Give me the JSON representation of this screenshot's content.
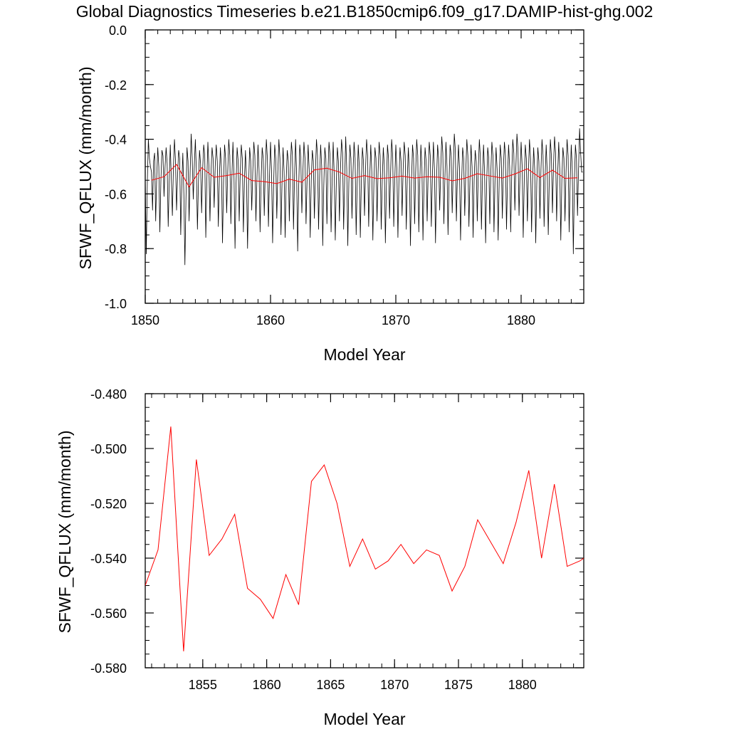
{
  "title": "Global Diagnostics Timeseries b.e21.B1850cmip6.f09_g17.DAMIP-hist-ghg.002",
  "colors": {
    "monthly": "#000000",
    "annual": "#ff0000",
    "axes": "#000000",
    "background": "#ffffff"
  },
  "chart_data": [
    {
      "type": "line",
      "title": "",
      "xlabel": "Model Year",
      "ylabel": "SFWF_QFLUX (mm/month)",
      "xlim": [
        1850,
        1885
      ],
      "ylim": [
        -1.0,
        0.0
      ],
      "xticks": [
        "1850",
        "1860",
        "1870",
        "1880"
      ],
      "yticks": [
        "0.0",
        "-0.2",
        "-0.4",
        "-0.6",
        "-0.8",
        "-1.0"
      ],
      "grid": false,
      "series": [
        {
          "name": "",
          "color": "#000000",
          "x_start": 1850.0,
          "x_step": 0.0833333,
          "values": [
            -0.54,
            -0.82,
            -0.56,
            -0.4,
            -0.47,
            -0.5,
            -0.52,
            -0.66,
            -0.48,
            -0.45,
            -0.7,
            -0.54,
            -0.43,
            -0.5,
            -0.74,
            -0.55,
            -0.44,
            -0.46,
            -0.61,
            -0.5,
            -0.43,
            -0.49,
            -0.72,
            -0.55,
            -0.42,
            -0.55,
            -0.68,
            -0.5,
            -0.4,
            -0.48,
            -0.66,
            -0.53,
            -0.44,
            -0.47,
            -0.75,
            -0.57,
            -0.45,
            -0.6,
            -0.86,
            -0.62,
            -0.43,
            -0.48,
            -0.7,
            -0.52,
            -0.38,
            -0.47,
            -0.62,
            -0.5,
            -0.4,
            -0.52,
            -0.73,
            -0.55,
            -0.44,
            -0.49,
            -0.67,
            -0.51,
            -0.42,
            -0.46,
            -0.76,
            -0.55,
            -0.41,
            -0.5,
            -0.7,
            -0.52,
            -0.43,
            -0.47,
            -0.65,
            -0.5,
            -0.42,
            -0.48,
            -0.72,
            -0.54,
            -0.43,
            -0.51,
            -0.78,
            -0.56,
            -0.42,
            -0.47,
            -0.67,
            -0.52,
            -0.4,
            -0.46,
            -0.71,
            -0.54,
            -0.41,
            -0.53,
            -0.8,
            -0.56,
            -0.43,
            -0.48,
            -0.7,
            -0.52,
            -0.42,
            -0.47,
            -0.74,
            -0.55,
            -0.44,
            -0.55,
            -0.8,
            -0.57,
            -0.43,
            -0.48,
            -0.66,
            -0.52,
            -0.41,
            -0.46,
            -0.7,
            -0.54,
            -0.42,
            -0.51,
            -0.74,
            -0.55,
            -0.43,
            -0.47,
            -0.68,
            -0.51,
            -0.4,
            -0.47,
            -0.72,
            -0.54,
            -0.41,
            -0.52,
            -0.78,
            -0.56,
            -0.42,
            -0.47,
            -0.69,
            -0.52,
            -0.4,
            -0.47,
            -0.75,
            -0.56,
            -0.43,
            -0.52,
            -0.76,
            -0.55,
            -0.44,
            -0.48,
            -0.7,
            -0.51,
            -0.41,
            -0.46,
            -0.73,
            -0.54,
            -0.4,
            -0.53,
            -0.81,
            -0.57,
            -0.42,
            -0.47,
            -0.67,
            -0.52,
            -0.41,
            -0.47,
            -0.71,
            -0.55,
            -0.42,
            -0.51,
            -0.76,
            -0.55,
            -0.44,
            -0.48,
            -0.69,
            -0.52,
            -0.4,
            -0.46,
            -0.73,
            -0.54,
            -0.42,
            -0.5,
            -0.79,
            -0.57,
            -0.43,
            -0.47,
            -0.71,
            -0.52,
            -0.41,
            -0.46,
            -0.74,
            -0.55,
            -0.41,
            -0.53,
            -0.77,
            -0.56,
            -0.43,
            -0.48,
            -0.7,
            -0.51,
            -0.4,
            -0.45,
            -0.73,
            -0.55,
            -0.39,
            -0.51,
            -0.79,
            -0.56,
            -0.42,
            -0.47,
            -0.69,
            -0.52,
            -0.41,
            -0.47,
            -0.75,
            -0.56,
            -0.42,
            -0.5,
            -0.76,
            -0.55,
            -0.43,
            -0.48,
            -0.68,
            -0.51,
            -0.4,
            -0.46,
            -0.72,
            -0.54,
            -0.42,
            -0.52,
            -0.77,
            -0.56,
            -0.43,
            -0.47,
            -0.7,
            -0.52,
            -0.41,
            -0.46,
            -0.73,
            -0.55,
            -0.43,
            -0.5,
            -0.78,
            -0.57,
            -0.42,
            -0.47,
            -0.69,
            -0.52,
            -0.4,
            -0.46,
            -0.72,
            -0.55,
            -0.42,
            -0.51,
            -0.76,
            -0.55,
            -0.43,
            -0.48,
            -0.68,
            -0.51,
            -0.41,
            -0.46,
            -0.73,
            -0.54,
            -0.43,
            -0.53,
            -0.79,
            -0.56,
            -0.42,
            -0.47,
            -0.71,
            -0.52,
            -0.4,
            -0.46,
            -0.74,
            -0.55,
            -0.42,
            -0.5,
            -0.77,
            -0.56,
            -0.43,
            -0.48,
            -0.7,
            -0.52,
            -0.41,
            -0.46,
            -0.72,
            -0.54,
            -0.41,
            -0.51,
            -0.78,
            -0.55,
            -0.42,
            -0.47,
            -0.66,
            -0.51,
            -0.39,
            -0.45,
            -0.71,
            -0.54,
            -0.41,
            -0.5,
            -0.75,
            -0.55,
            -0.42,
            -0.46,
            -0.67,
            -0.51,
            -0.38,
            -0.44,
            -0.7,
            -0.53,
            -0.42,
            -0.51,
            -0.77,
            -0.56,
            -0.43,
            -0.47,
            -0.68,
            -0.52,
            -0.4,
            -0.46,
            -0.72,
            -0.55,
            -0.42,
            -0.5,
            -0.76,
            -0.55,
            -0.44,
            -0.48,
            -0.7,
            -0.51,
            -0.4,
            -0.47,
            -0.73,
            -0.54,
            -0.42,
            -0.52,
            -0.78,
            -0.56,
            -0.43,
            -0.47,
            -0.71,
            -0.52,
            -0.41,
            -0.46,
            -0.74,
            -0.55,
            -0.43,
            -0.51,
            -0.77,
            -0.55,
            -0.42,
            -0.47,
            -0.69,
            -0.51,
            -0.41,
            -0.46,
            -0.73,
            -0.54,
            -0.42,
            -0.5,
            -0.74,
            -0.53,
            -0.4,
            -0.45,
            -0.66,
            -0.5,
            -0.38,
            -0.44,
            -0.68,
            -0.52,
            -0.41,
            -0.5,
            -0.76,
            -0.55,
            -0.42,
            -0.47,
            -0.7,
            -0.52,
            -0.4,
            -0.47,
            -0.74,
            -0.55,
            -0.43,
            -0.51,
            -0.78,
            -0.56,
            -0.43,
            -0.48,
            -0.69,
            -0.51,
            -0.4,
            -0.46,
            -0.72,
            -0.54,
            -0.42,
            -0.52,
            -0.75,
            -0.54,
            -0.4,
            -0.46,
            -0.67,
            -0.5,
            -0.39,
            -0.45,
            -0.7,
            -0.53,
            -0.41,
            -0.51,
            -0.77,
            -0.55,
            -0.43,
            -0.47,
            -0.7,
            -0.52,
            -0.4,
            -0.46,
            -0.74,
            -0.55,
            -0.42,
            -0.51,
            -0.82,
            -0.56,
            -0.42,
            -0.47,
            -0.68,
            -0.51,
            -0.36,
            -0.45,
            -0.52,
            -0.52
          ]
        },
        {
          "name": "",
          "color": "#ff0000",
          "x": [
            1850.5,
            1851.5,
            1852.5,
            1853.5,
            1854.5,
            1855.5,
            1856.5,
            1857.5,
            1858.5,
            1859.5,
            1860.5,
            1861.5,
            1862.5,
            1863.5,
            1864.5,
            1865.5,
            1866.5,
            1867.5,
            1868.5,
            1869.5,
            1870.5,
            1871.5,
            1872.5,
            1873.5,
            1874.5,
            1875.5,
            1876.5,
            1877.5,
            1878.5,
            1879.5,
            1880.5,
            1881.5,
            1882.5,
            1883.5,
            1884.5
          ],
          "values": [
            -0.55,
            -0.537,
            -0.492,
            -0.574,
            -0.504,
            -0.539,
            -0.533,
            -0.524,
            -0.551,
            -0.555,
            -0.562,
            -0.546,
            -0.557,
            -0.512,
            -0.506,
            -0.52,
            -0.543,
            -0.533,
            -0.544,
            -0.541,
            -0.535,
            -0.542,
            -0.537,
            -0.539,
            -0.552,
            -0.543,
            -0.526,
            -0.534,
            -0.542,
            -0.527,
            -0.508,
            -0.54,
            -0.513,
            -0.543,
            -0.541
          ]
        }
      ]
    },
    {
      "type": "line",
      "title": "",
      "xlabel": "Model Year",
      "ylabel": "SFWF_QFLUX (mm/month)",
      "xlim": [
        1850.5,
        1884.8
      ],
      "ylim": [
        -0.58,
        -0.48
      ],
      "xticks": [
        "1855",
        "1860",
        "1865",
        "1870",
        "1875",
        "1880"
      ],
      "yticks": [
        "-0.480",
        "-0.500",
        "-0.520",
        "-0.540",
        "-0.560",
        "-0.580"
      ],
      "grid": false,
      "series": [
        {
          "name": "",
          "color": "#ff0000",
          "x": [
            1850.5,
            1851.5,
            1852.5,
            1853.5,
            1854.5,
            1855.5,
            1856.5,
            1857.5,
            1858.5,
            1859.5,
            1860.5,
            1861.5,
            1862.5,
            1863.5,
            1864.5,
            1865.5,
            1866.5,
            1867.5,
            1868.5,
            1869.5,
            1870.5,
            1871.5,
            1872.5,
            1873.5,
            1874.5,
            1875.5,
            1876.5,
            1877.5,
            1878.5,
            1879.5,
            1880.5,
            1881.5,
            1882.5,
            1883.5,
            1884.5,
            1884.8
          ],
          "values": [
            -0.55,
            -0.537,
            -0.492,
            -0.574,
            -0.504,
            -0.539,
            -0.533,
            -0.524,
            -0.551,
            -0.555,
            -0.562,
            -0.546,
            -0.557,
            -0.512,
            -0.506,
            -0.52,
            -0.543,
            -0.533,
            -0.544,
            -0.541,
            -0.535,
            -0.542,
            -0.537,
            -0.539,
            -0.552,
            -0.543,
            -0.526,
            -0.534,
            -0.542,
            -0.527,
            -0.508,
            -0.54,
            -0.513,
            -0.543,
            -0.541,
            -0.54
          ]
        }
      ]
    }
  ]
}
